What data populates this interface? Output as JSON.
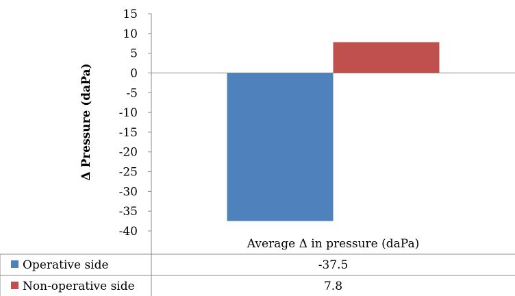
{
  "chart_data": {
    "type": "bar",
    "ylabel": "Δ Pressure (daPa)",
    "categories": [
      "Average Δ in pressure (daPa)"
    ],
    "series": [
      {
        "name": "Operative side",
        "values": [
          -37.5
        ],
        "color": "#4F81BD"
      },
      {
        "name": "Non-operative side",
        "values": [
          7.8
        ],
        "color": "#C0504D"
      }
    ],
    "ylim": [
      -40,
      15
    ],
    "yticks": [
      15,
      10,
      5,
      0,
      -5,
      -10,
      -15,
      -20,
      -25,
      -30,
      -35,
      -40
    ],
    "grid": false,
    "legend": "data-table-below"
  }
}
